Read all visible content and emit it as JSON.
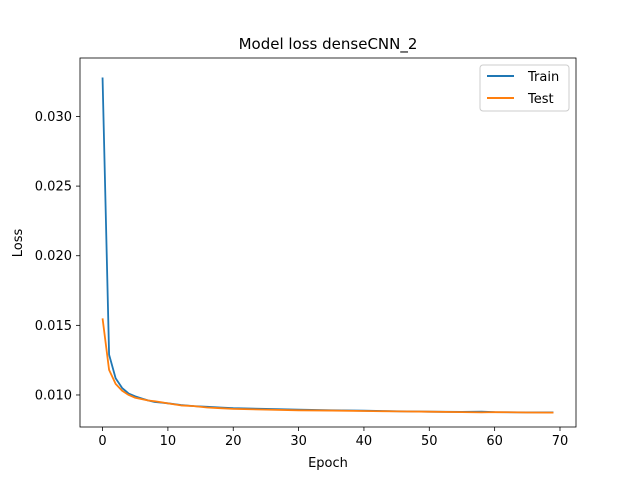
{
  "chart_data": {
    "type": "line",
    "title": "Model loss denseCNN_2",
    "xlabel": "Epoch",
    "ylabel": "Loss",
    "xlim": [
      -3.45,
      72.45
    ],
    "ylim": [
      0.0077,
      0.0342
    ],
    "xticks": [
      0,
      10,
      20,
      30,
      40,
      50,
      60,
      70
    ],
    "yticks": [
      0.01,
      0.015,
      0.02,
      0.025,
      0.03
    ],
    "ytick_labels": [
      "0.010",
      "0.015",
      "0.020",
      "0.025",
      "0.030"
    ],
    "legend_position": "upper-right",
    "grid": false,
    "series": [
      {
        "name": "Train",
        "color": "#1f77b4",
        "x": [
          0,
          1,
          2,
          3,
          4,
          5,
          6,
          7,
          8,
          9,
          10,
          12,
          14,
          16,
          18,
          20,
          25,
          30,
          35,
          40,
          45,
          50,
          55,
          58,
          60,
          65,
          69
        ],
        "values": [
          0.0328,
          0.0129,
          0.0112,
          0.0105,
          0.0101,
          0.0099,
          0.00975,
          0.0096,
          0.0095,
          0.00945,
          0.0094,
          0.00928,
          0.0092,
          0.00915,
          0.0091,
          0.00905,
          0.009,
          0.00895,
          0.0089,
          0.00887,
          0.00883,
          0.0088,
          0.00878,
          0.0088,
          0.00877,
          0.00875,
          0.00875
        ]
      },
      {
        "name": "Test",
        "color": "#ff7f0e",
        "x": [
          0,
          1,
          2,
          3,
          4,
          5,
          6,
          7,
          8,
          9,
          10,
          12,
          14,
          16,
          18,
          20,
          25,
          30,
          35,
          40,
          45,
          50,
          55,
          58,
          60,
          65,
          69
        ],
        "values": [
          0.0155,
          0.0118,
          0.0108,
          0.0103,
          0.01,
          0.0098,
          0.0097,
          0.0096,
          0.00955,
          0.00948,
          0.0094,
          0.00925,
          0.0092,
          0.0091,
          0.00905,
          0.009,
          0.00895,
          0.0089,
          0.00888,
          0.00885,
          0.00882,
          0.0088,
          0.00877,
          0.00875,
          0.00877,
          0.00874,
          0.00873
        ]
      }
    ]
  }
}
